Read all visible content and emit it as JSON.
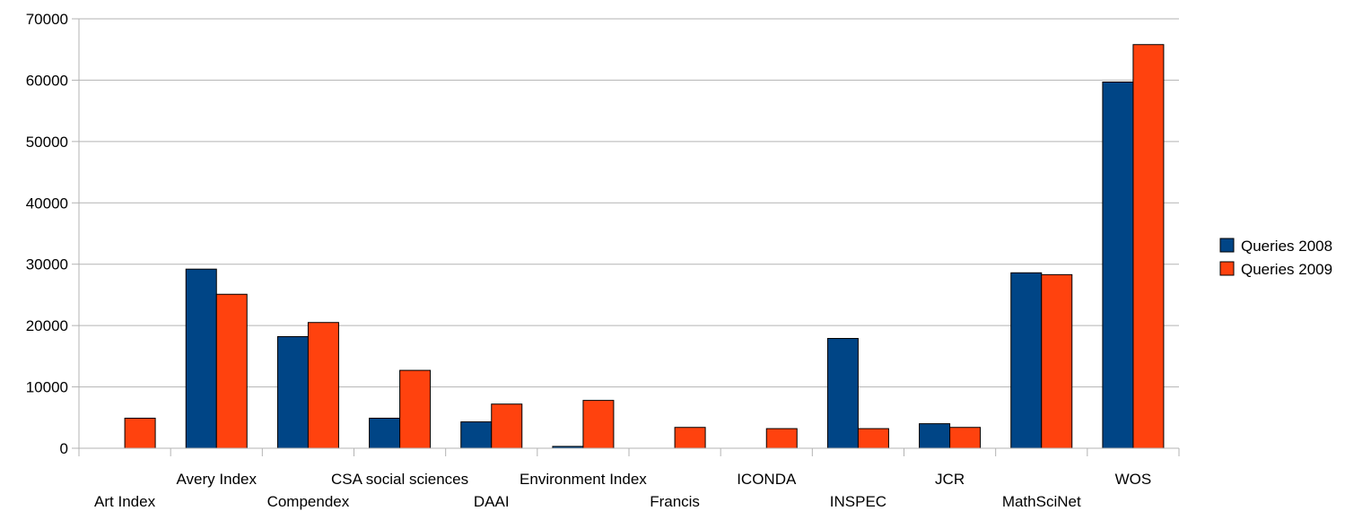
{
  "chart_data": {
    "type": "bar",
    "categories": [
      "Art Index",
      "Avery Index",
      "Compendex",
      "CSA social sciences",
      "DAAI",
      "Environment Index",
      "Francis",
      "ICONDA",
      "INSPEC",
      "JCR",
      "MathSciNet",
      "WOS"
    ],
    "series": [
      {
        "name": "Queries 2008",
        "color": "#004586",
        "values": [
          0,
          29200,
          18200,
          4900,
          4300,
          300,
          0,
          0,
          17900,
          4000,
          28600,
          59700
        ]
      },
      {
        "name": "Queries 2009",
        "color": "#ff420e",
        "values": [
          4900,
          25100,
          20500,
          12700,
          7200,
          7800,
          3400,
          3200,
          3200,
          3400,
          28300,
          65800
        ]
      }
    ],
    "y_ticks": [
      "0",
      "10000",
      "20000",
      "30000",
      "40000",
      "50000",
      "60000",
      "70000"
    ],
    "ylim": [
      0,
      70000
    ],
    "grid": "horizontal",
    "legend_position": "right"
  }
}
